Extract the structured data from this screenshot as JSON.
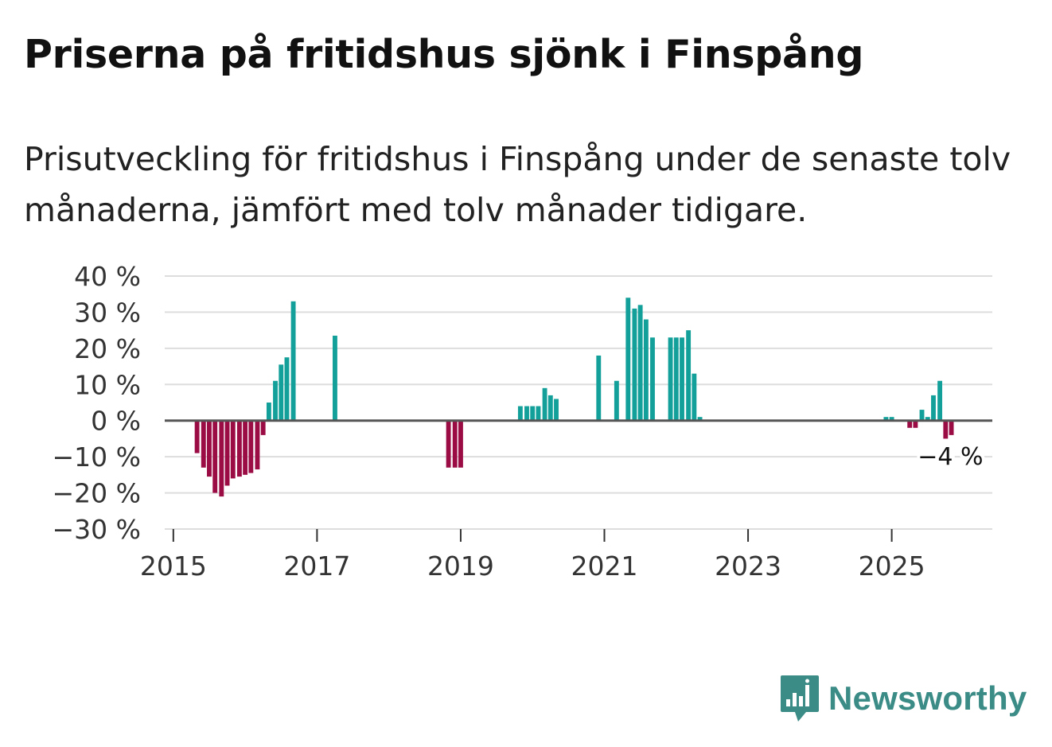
{
  "title": "Priserna på fritidshus sjönk i Finspång",
  "subtitle": "Prisutveckling för fritidshus i Finspång under de senaste tolv månaderna, jämfört med tolv månader tidigare.",
  "brand": {
    "name": "Newsworthy",
    "color": "#3b8b86",
    "icon": "bar-chart-speech-bubble-icon"
  },
  "colors": {
    "positive": "#13a09a",
    "negative": "#9b0c45",
    "grid": "#dddddd",
    "zero_line": "#555555"
  },
  "chart_data": {
    "type": "bar",
    "title": "Priserna på fritidshus sjönk i Finspång",
    "xlabel": "",
    "ylabel": "",
    "ylim": [
      -30,
      40
    ],
    "yticks": [
      40,
      30,
      20,
      10,
      0,
      -10,
      -20,
      -30
    ],
    "ytick_labels": [
      "40 %",
      "30 %",
      "20 %",
      "10 %",
      "0 %",
      "−10 %",
      "−20 %",
      "−30 %"
    ],
    "xticks": [
      2015,
      2017,
      2019,
      2021,
      2023,
      2025
    ],
    "xtick_labels": [
      "2015",
      "2017",
      "2019",
      "2021",
      "2023",
      "2025"
    ],
    "xlim": [
      2014.88,
      2026.4
    ],
    "unit": "%",
    "series": [
      {
        "name": "Prisutveckling",
        "points": [
          {
            "x": 2015.33,
            "y": -9
          },
          {
            "x": 2015.42,
            "y": -13
          },
          {
            "x": 2015.5,
            "y": -15.5
          },
          {
            "x": 2015.58,
            "y": -20
          },
          {
            "x": 2015.67,
            "y": -21
          },
          {
            "x": 2015.75,
            "y": -18
          },
          {
            "x": 2015.83,
            "y": -16
          },
          {
            "x": 2015.92,
            "y": -15.5
          },
          {
            "x": 2016.0,
            "y": -15
          },
          {
            "x": 2016.08,
            "y": -14.5
          },
          {
            "x": 2016.17,
            "y": -13.5
          },
          {
            "x": 2016.25,
            "y": -4
          },
          {
            "x": 2016.33,
            "y": 5
          },
          {
            "x": 2016.42,
            "y": 11
          },
          {
            "x": 2016.5,
            "y": 15.5
          },
          {
            "x": 2016.58,
            "y": 17.5
          },
          {
            "x": 2016.67,
            "y": 33
          },
          {
            "x": 2017.25,
            "y": 23.5
          },
          {
            "x": 2018.83,
            "y": -13
          },
          {
            "x": 2018.92,
            "y": -13
          },
          {
            "x": 2019.0,
            "y": -13
          },
          {
            "x": 2019.83,
            "y": 4
          },
          {
            "x": 2019.92,
            "y": 4
          },
          {
            "x": 2020.0,
            "y": 4
          },
          {
            "x": 2020.08,
            "y": 4
          },
          {
            "x": 2020.17,
            "y": 9
          },
          {
            "x": 2020.25,
            "y": 7
          },
          {
            "x": 2020.33,
            "y": 6
          },
          {
            "x": 2020.92,
            "y": 18
          },
          {
            "x": 2021.17,
            "y": 11
          },
          {
            "x": 2021.33,
            "y": 34
          },
          {
            "x": 2021.42,
            "y": 31
          },
          {
            "x": 2021.5,
            "y": 32
          },
          {
            "x": 2021.58,
            "y": 28
          },
          {
            "x": 2021.67,
            "y": 23
          },
          {
            "x": 2021.92,
            "y": 23
          },
          {
            "x": 2022.0,
            "y": 23
          },
          {
            "x": 2022.08,
            "y": 23
          },
          {
            "x": 2022.17,
            "y": 25
          },
          {
            "x": 2022.25,
            "y": 13
          },
          {
            "x": 2022.33,
            "y": 1
          },
          {
            "x": 2024.92,
            "y": 1
          },
          {
            "x": 2025.0,
            "y": 1
          },
          {
            "x": 2025.25,
            "y": -2
          },
          {
            "x": 2025.33,
            "y": -2
          },
          {
            "x": 2025.42,
            "y": 3
          },
          {
            "x": 2025.5,
            "y": 1
          },
          {
            "x": 2025.58,
            "y": 7
          },
          {
            "x": 2025.67,
            "y": 11
          },
          {
            "x": 2025.75,
            "y": -5
          },
          {
            "x": 2025.83,
            "y": -4
          }
        ]
      }
    ],
    "annotations": [
      {
        "label": "−4 %",
        "x": 2025.83,
        "y": -10
      }
    ]
  }
}
